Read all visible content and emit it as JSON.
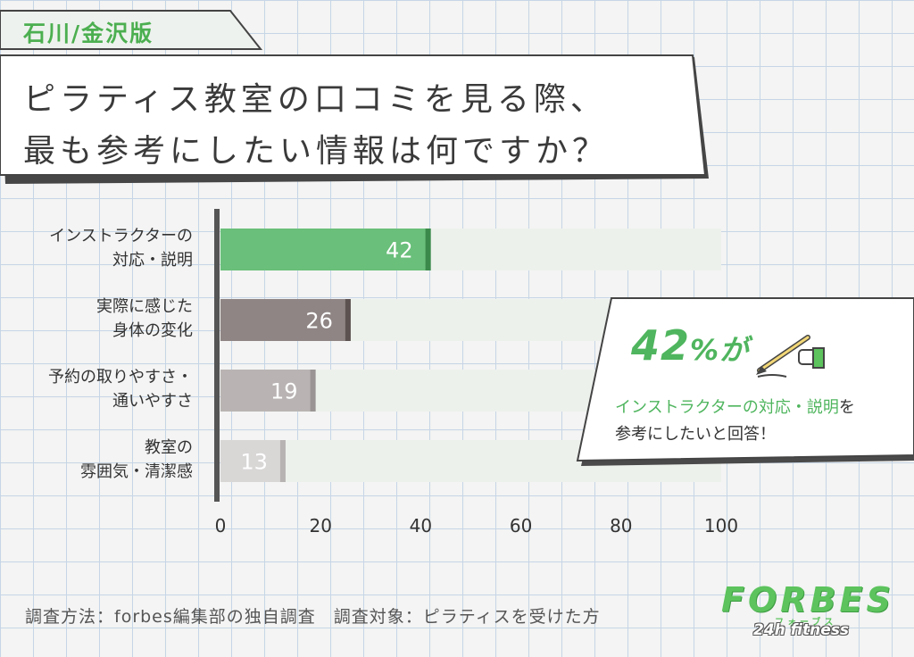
{
  "region_label": "石川/金沢版",
  "title": {
    "line1": "ピラティス教室の口コミを見る際、",
    "line2": "最も参考にしたい情報は何ですか？"
  },
  "chart_data": {
    "type": "bar",
    "orientation": "horizontal",
    "categories": [
      [
        "インストラクターの",
        "対応・説明"
      ],
      [
        "実際に感じた",
        "身体の変化"
      ],
      [
        "予約の取りやすさ・",
        "通いやすさ"
      ],
      [
        "教室の",
        "雰囲気・清潔感"
      ]
    ],
    "values": [
      42,
      26,
      19,
      13
    ],
    "bar_colors": [
      "#6abf7a",
      "#8f8584",
      "#b9b4b3",
      "#d9d6d6"
    ],
    "bar_edge_colors": [
      "#3c8a4b",
      "#5c5250",
      "#9a9594",
      "#b8b3b3"
    ],
    "track_color": "#edf1ec",
    "xlim": [
      0,
      100
    ],
    "xticks": [
      "0",
      "20",
      "40",
      "60",
      "80",
      "100"
    ],
    "grid": false
  },
  "callout": {
    "big_number": "42",
    "percent": "%",
    "suffix": "が",
    "highlight": "インストラクターの対応・説明",
    "line1_rest": "を",
    "line2": "参考にしたいと回答！"
  },
  "footnote": "調査方法：forbes編集部の独自調査　調査対象：ピラティスを受けた方",
  "brand": {
    "name": "FORBES",
    "kana": "フォーブス",
    "sub": "24h fitness"
  },
  "colors": {
    "accent_green": "#4fb55e",
    "axis": "#555555"
  }
}
